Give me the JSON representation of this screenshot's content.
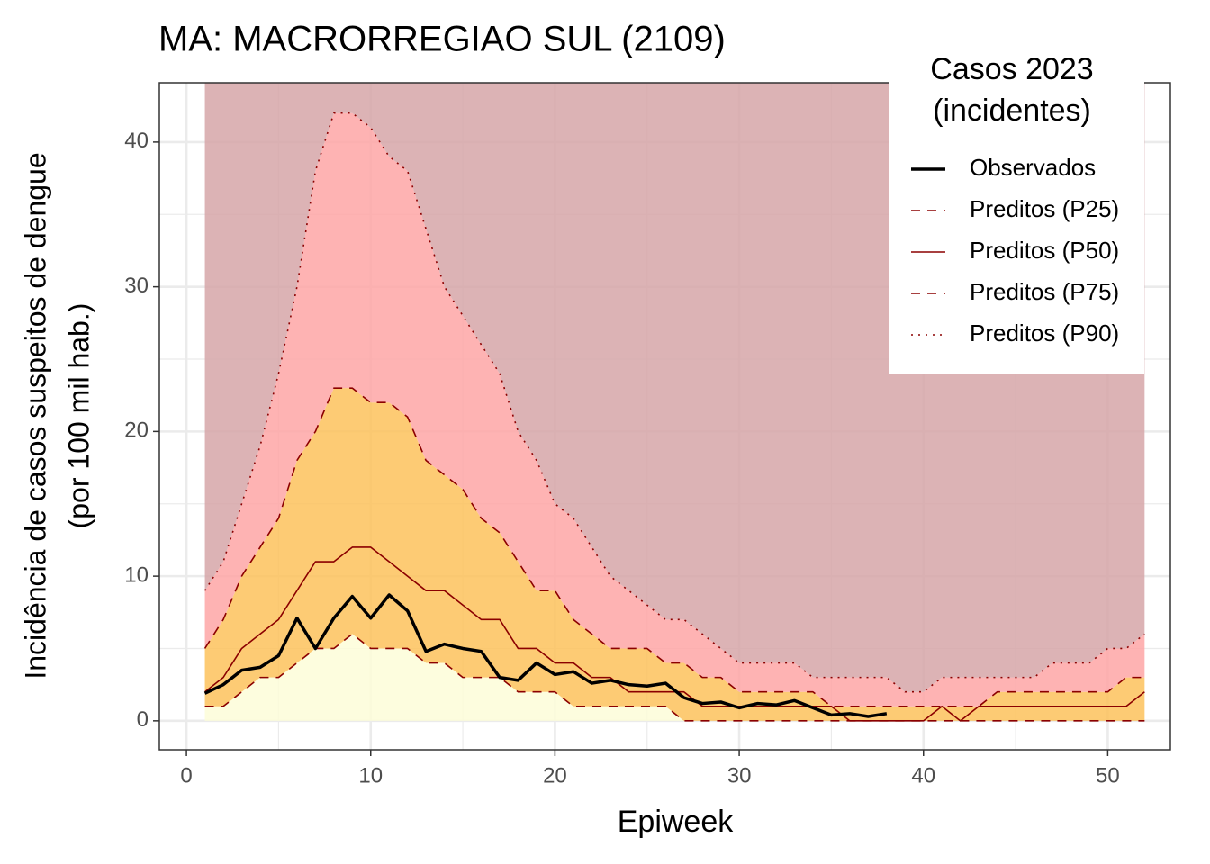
{
  "chart_data": {
    "type": "line",
    "title": "MA: MACRORREGIAO SUL (2109)",
    "xlabel": "Epiweek",
    "ylabel": [
      "Incidência de casos suspeitos de dengue",
      "(por 100 mil hab.)"
    ],
    "xlim": [
      -1.47,
      53.4
    ],
    "ylim": [
      -2.0,
      44.1
    ],
    "xticks": [
      0,
      10,
      20,
      30,
      40,
      50
    ],
    "yticks": [
      0,
      10,
      20,
      30,
      40
    ],
    "minor_xticks": [
      5,
      15,
      25,
      35,
      45
    ],
    "minor_yticks": [
      5,
      15,
      25,
      35
    ],
    "grid": true,
    "legend_title": [
      "Casos 2023",
      "(incidentes)"
    ],
    "legend_position": "top-right",
    "band_colors": [
      "#fdfdd8",
      "#fdc25c",
      "#fea6a6",
      "#d6a6a8"
    ],
    "x": [
      1,
      2,
      3,
      4,
      5,
      6,
      7,
      8,
      9,
      10,
      11,
      12,
      13,
      14,
      15,
      16,
      17,
      18,
      19,
      20,
      21,
      22,
      23,
      24,
      25,
      26,
      27,
      28,
      29,
      30,
      31,
      32,
      33,
      34,
      35,
      36,
      37,
      38,
      39,
      40,
      41,
      42,
      43,
      44,
      45,
      46,
      47,
      48,
      49,
      50,
      51,
      52
    ],
    "series": [
      {
        "name": "Observados",
        "color": "#000000",
        "style": "solid",
        "width": 3.5,
        "values": [
          1.9,
          2.5,
          3.5,
          3.7,
          4.5,
          7.1,
          5.0,
          7.1,
          8.6,
          7.1,
          8.7,
          7.6,
          4.8,
          5.3,
          5.0,
          4.8,
          3.0,
          2.8,
          4.0,
          3.2,
          3.4,
          2.6,
          2.8,
          2.5,
          2.4,
          2.6,
          1.6,
          1.2,
          1.3,
          0.9,
          1.2,
          1.1,
          1.4,
          0.9,
          0.4,
          0.5,
          0.3,
          0.5,
          null,
          null,
          null,
          null,
          null,
          null,
          null,
          null,
          null,
          null,
          null,
          null,
          null,
          null
        ]
      },
      {
        "name": "Preditos (P25)",
        "color": "#8b0000",
        "style": "dashed",
        "width": 1.6,
        "values": [
          1,
          1,
          2,
          3,
          3,
          4,
          5,
          5,
          6,
          5,
          5,
          5,
          4,
          4,
          3,
          3,
          3,
          2,
          2,
          2,
          1,
          1,
          1,
          1,
          1,
          1,
          0,
          0,
          0,
          0,
          0,
          0,
          0,
          0,
          0,
          0,
          0,
          0,
          0,
          0,
          0,
          0,
          0,
          0,
          0,
          0,
          0,
          0,
          0,
          0,
          0,
          0
        ]
      },
      {
        "name": "Preditos (P50)",
        "color": "#8b0000",
        "style": "solid",
        "width": 1.6,
        "values": [
          2,
          3,
          5,
          6,
          7,
          9,
          11,
          11,
          12,
          12,
          11,
          10,
          9,
          9,
          8,
          7,
          7,
          5,
          5,
          4,
          4,
          3,
          3,
          2,
          2,
          2,
          2,
          1,
          1,
          1,
          1,
          1,
          1,
          1,
          1,
          0,
          0,
          0,
          0,
          0,
          1,
          0,
          1,
          1,
          1,
          1,
          1,
          1,
          1,
          1,
          1,
          2
        ]
      },
      {
        "name": "Preditos (P75)",
        "color": "#8b0000",
        "style": "dashed",
        "width": 1.6,
        "values": [
          5,
          7,
          10,
          12,
          14,
          18,
          20,
          23,
          23,
          22,
          22,
          21,
          18,
          17,
          16,
          14,
          13,
          11,
          9,
          9,
          7,
          6,
          5,
          5,
          5,
          4,
          4,
          3,
          3,
          2,
          2,
          2,
          2,
          2,
          1,
          1,
          1,
          1,
          1,
          1,
          1,
          1,
          1,
          2,
          2,
          2,
          2,
          2,
          2,
          2,
          3,
          3
        ]
      },
      {
        "name": "Preditos (P90)",
        "color": "#8b0000",
        "style": "dotted",
        "width": 1.6,
        "values": [
          9,
          11,
          15,
          19,
          24,
          30,
          38,
          42,
          42,
          41,
          39,
          38,
          34,
          30,
          28,
          26,
          24,
          20,
          18,
          15,
          14,
          12,
          10,
          9,
          8,
          7,
          7,
          6,
          5,
          4,
          4,
          4,
          4,
          3,
          3,
          3,
          3,
          3,
          2,
          2,
          3,
          3,
          3,
          3,
          3,
          3,
          4,
          4,
          4,
          5,
          5,
          6
        ]
      }
    ]
  }
}
